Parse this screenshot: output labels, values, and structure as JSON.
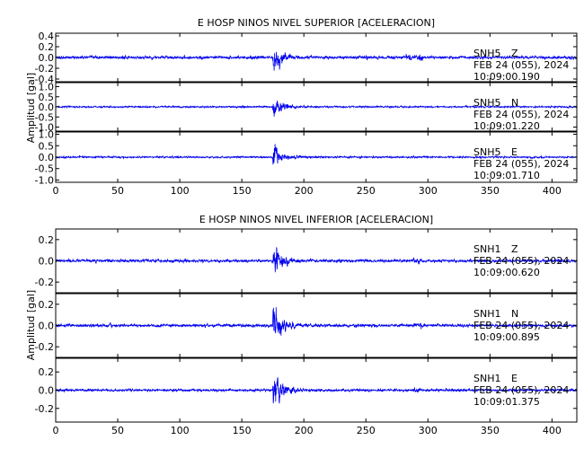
{
  "figure": {
    "ylabel": "Amplitud [gal]"
  },
  "colors": {
    "trace": "#0000ee",
    "axis": "#000000",
    "background": "#ffffff"
  },
  "chart_data": [
    {
      "type": "line",
      "title": "E HOSP NINOS NIVEL SUPERIOR [ACELERACION]",
      "xlim": [
        0,
        420
      ],
      "x_ticks": [
        0,
        50,
        100,
        150,
        200,
        250,
        300,
        350,
        400
      ],
      "x_tick_labels": [
        "0",
        "50",
        "100",
        "150",
        "200",
        "250",
        "300",
        "350",
        "400"
      ],
      "event_onset_s": 175,
      "panels": [
        {
          "station": "SNH5",
          "component": "Z",
          "date": "FEB 24 (055), 2024",
          "time": "10:09:00.190",
          "ylim": [
            -0.45,
            0.45
          ],
          "y_ticks": [
            -0.4,
            -0.2,
            0.0,
            0.2,
            0.4
          ],
          "y_tick_labels": [
            "-0.4",
            "-0.2",
            "0.0",
            "0.2",
            "0.4"
          ],
          "noise_amp": 0.04,
          "peak_amp": 0.42
        },
        {
          "station": "SNH5",
          "component": "N",
          "date": "FEB 24 (055), 2024",
          "time": "10:09:01.220",
          "ylim": [
            -1.2,
            1.2
          ],
          "y_ticks": [
            -1.0,
            -0.5,
            0.0,
            0.5,
            1.0
          ],
          "y_tick_labels": [
            "-1.0",
            "-0.5",
            "0.0",
            "0.5",
            "1.0"
          ],
          "noise_amp": 0.06,
          "peak_amp": 0.9
        },
        {
          "station": "SNH5",
          "component": "E",
          "date": "FEB 24 (055), 2024",
          "time": "10:09:01.710",
          "ylim": [
            -1.1,
            1.1
          ],
          "y_ticks": [
            -1.0,
            -0.5,
            0.0,
            0.5,
            1.0
          ],
          "y_tick_labels": [
            "-1.0",
            "-0.5",
            "0.0",
            "0.5",
            "1.0"
          ],
          "noise_amp": 0.06,
          "peak_amp": 0.95
        }
      ]
    },
    {
      "type": "line",
      "title": "E HOSP NINOS NIVEL INFERIOR [ACELERACION]",
      "xlim": [
        0,
        420
      ],
      "x_ticks": [
        0,
        50,
        100,
        150,
        200,
        250,
        300,
        350,
        400
      ],
      "x_tick_labels": [
        "0",
        "50",
        "100",
        "150",
        "200",
        "250",
        "300",
        "350",
        "400"
      ],
      "event_onset_s": 175,
      "panels": [
        {
          "station": "SNH1",
          "component": "Z",
          "date": "FEB 24 (055), 2024",
          "time": "10:09:00.620",
          "ylim": [
            -0.3,
            0.3
          ],
          "y_ticks": [
            -0.2,
            0.0,
            0.2
          ],
          "y_tick_labels": [
            "-0.2",
            "0.0",
            "0.2"
          ],
          "noise_amp": 0.02,
          "peak_amp": 0.27
        },
        {
          "station": "SNH1",
          "component": "N",
          "date": "FEB 24 (055), 2024",
          "time": "10:09:00.895",
          "ylim": [
            -0.3,
            0.3
          ],
          "y_ticks": [
            -0.2,
            0.0,
            0.2
          ],
          "y_tick_labels": [
            "-0.2",
            "0.0",
            "0.2"
          ],
          "noise_amp": 0.02,
          "peak_amp": 0.27
        },
        {
          "station": "SNH1",
          "component": "E",
          "date": "FEB 24 (055), 2024",
          "time": "10:09:01.375",
          "ylim": [
            -0.35,
            0.35
          ],
          "y_ticks": [
            -0.2,
            0.0,
            0.2
          ],
          "y_tick_labels": [
            "-0.2",
            "0.0",
            "0.2"
          ],
          "noise_amp": 0.02,
          "peak_amp": 0.32
        }
      ]
    }
  ]
}
